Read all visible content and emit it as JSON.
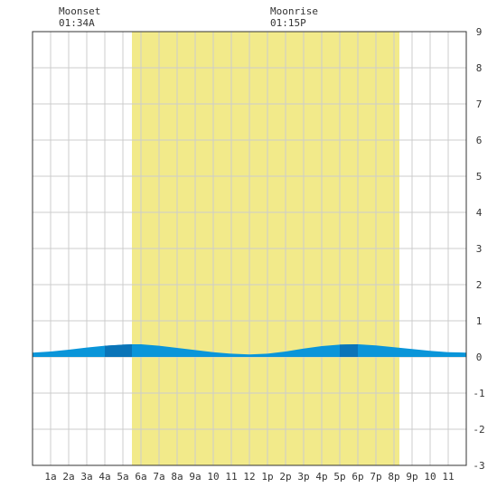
{
  "chart_data": {
    "type": "area",
    "title": "",
    "xlabel": "",
    "ylabel": "",
    "ylim": [
      -3,
      9
    ],
    "xlim": [
      0,
      24
    ],
    "grid": true,
    "x_tick_labels": [
      "1a",
      "2a",
      "3a",
      "4a",
      "5a",
      "6a",
      "7a",
      "8a",
      "9a",
      "10",
      "11",
      "12",
      "1p",
      "2p",
      "3p",
      "4p",
      "5p",
      "6p",
      "7p",
      "8p",
      "9p",
      "10",
      "11"
    ],
    "y_tick_labels": [
      "9",
      "8",
      "7",
      "6",
      "5",
      "4",
      "3",
      "2",
      "1",
      "0",
      "-1",
      "-2",
      "-3"
    ],
    "daylight": {
      "start_hour": 5.5,
      "end_hour": 20.3
    },
    "annotations": [
      {
        "label": "Moonset",
        "time": "01:34A"
      },
      {
        "label": "Moonrise",
        "time": "01:15P"
      }
    ],
    "series": [
      {
        "x": [
          0,
          1,
          2,
          3,
          4,
          5,
          5.5,
          6,
          7,
          8,
          9,
          10,
          11,
          12,
          13,
          14,
          15,
          16,
          17,
          18,
          19,
          20,
          21,
          22,
          23,
          24
        ],
        "values": [
          0.12,
          0.15,
          0.2,
          0.26,
          0.31,
          0.34,
          0.35,
          0.35,
          0.31,
          0.25,
          0.19,
          0.13,
          0.09,
          0.07,
          0.09,
          0.15,
          0.23,
          0.3,
          0.34,
          0.35,
          0.32,
          0.27,
          0.22,
          0.17,
          0.13,
          0.12
        ]
      }
    ],
    "colors": {
      "daylight": "#f2ea8a",
      "tide_fill": "#0a95d9",
      "tide_fill_dark": "#0a74b8",
      "grid": "#cccccc",
      "border": "#333333",
      "text": "#333333"
    }
  }
}
